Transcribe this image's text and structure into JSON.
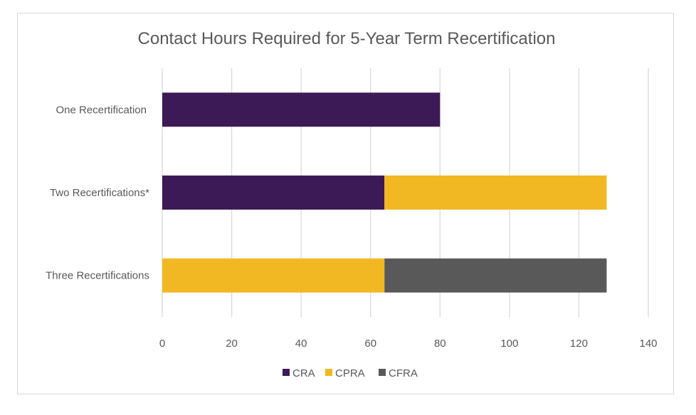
{
  "chart_data": {
    "type": "bar",
    "orientation": "horizontal",
    "stacked": true,
    "title": "Contact Hours Required for 5-Year Term Recertification",
    "xlabel": "",
    "ylabel": "",
    "categories": [
      "One Recertification",
      "Two Recertifications*",
      "Three Recertifications"
    ],
    "series": [
      {
        "name": "CRA",
        "color": "#3c1a56",
        "values": [
          80,
          64,
          0
        ]
      },
      {
        "name": "CPRA",
        "color": "#f2b824",
        "values": [
          0,
          64,
          64
        ]
      },
      {
        "name": "CFRA",
        "color": "#595959",
        "values": [
          0,
          0,
          64
        ]
      }
    ],
    "xlim": [
      0,
      140
    ],
    "xticks": [
      "0",
      "20",
      "40",
      "60",
      "80",
      "100",
      "120",
      "140"
    ],
    "grid": true,
    "legend": "bottom"
  }
}
